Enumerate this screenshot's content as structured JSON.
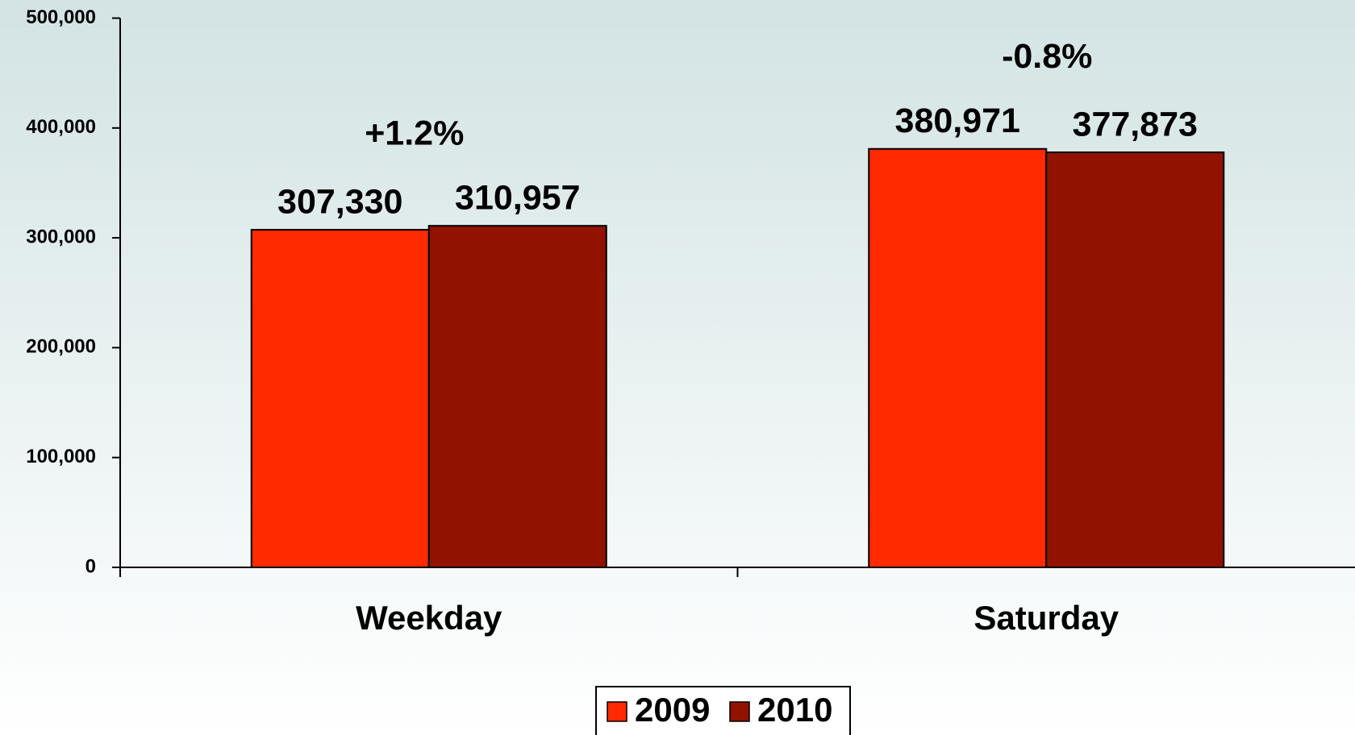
{
  "chart_data": {
    "type": "bar",
    "categories": [
      "Weekday",
      "Saturday"
    ],
    "series": [
      {
        "name": "2009",
        "color": "#ff2a00",
        "values": [
          307330,
          380971
        ],
        "value_labels": [
          "307,330",
          "380,971"
        ]
      },
      {
        "name": "2010",
        "color": "#921200",
        "values": [
          310957,
          377873
        ],
        "value_labels": [
          "310,957",
          "377,873"
        ]
      }
    ],
    "annotations": [
      "+1.2%",
      "-0.8%"
    ],
    "ylim": [
      0,
      500000
    ],
    "yticks": [
      0,
      {
        "value": 100000,
        "label": "100,000"
      },
      {
        "value": 200000,
        "label": "200,000"
      },
      {
        "value": 300000,
        "label": "300,000"
      },
      {
        "value": 400000,
        "label": "400,000"
      },
      {
        "value": 500000,
        "label": "500,000"
      }
    ],
    "grid": false,
    "legend": "bottom"
  }
}
